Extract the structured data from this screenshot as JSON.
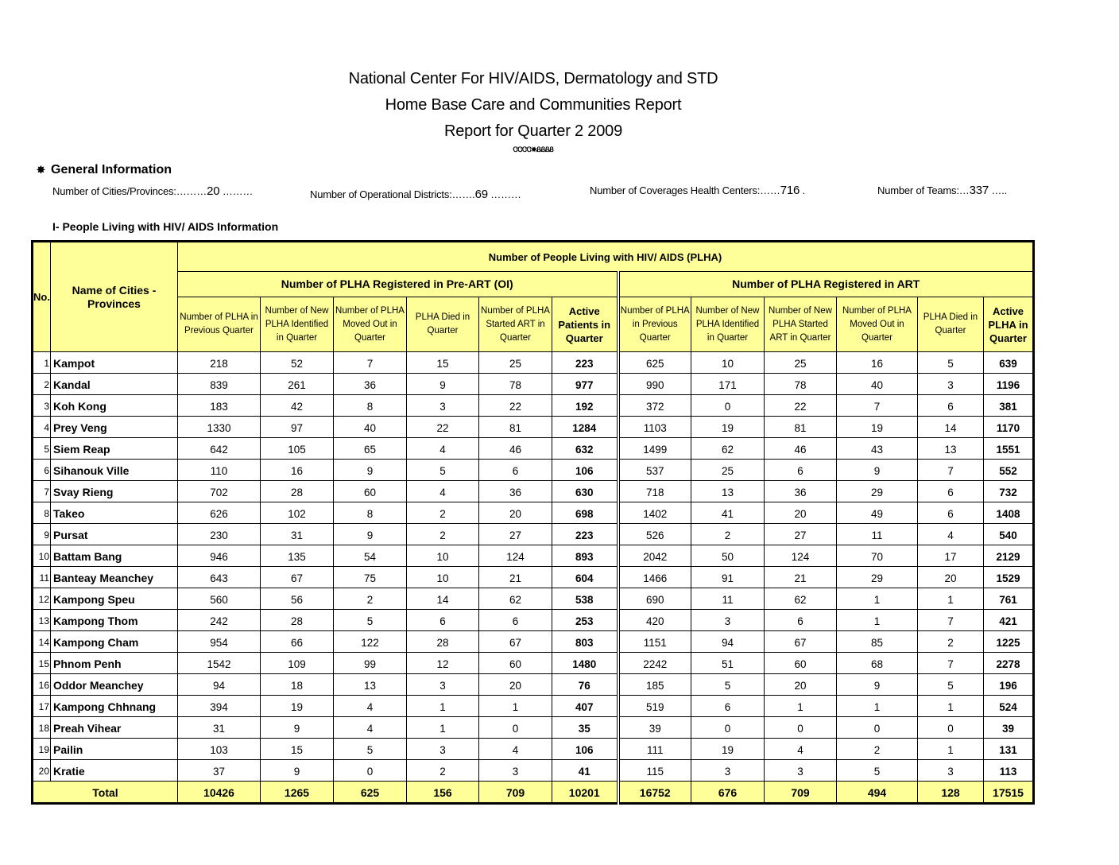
{
  "header": {
    "line1": "National Center For HIV/AIDS, Dermatology and STD",
    "line2": "Home Base Care and Communities Report",
    "line3": "Report  for Quarter 2  2009"
  },
  "general": {
    "heading": "General Information",
    "cities_label": "Number of Cities/Provinces:………",
    "cities_value": "20",
    "districts_label": "Number of Operational Districts:…….",
    "districts_value": "69",
    "centers_label": "Number of Coverages Health Centers:……",
    "centers_value": "716",
    "teams_label": "Number of Teams:…",
    "teams_value": "337"
  },
  "section_title": "I- People Living with HIV/ AIDS Information",
  "table": {
    "col_no": "No.",
    "col_name": "Name of Cities - Provinces",
    "group_main": "Number of People Living with HIV/ AIDS (PLHA)",
    "group_preart": "Number of PLHA Registered in Pre-ART (OI)",
    "group_art": "Number of PLHA Registered in ART",
    "preart_cols": [
      "Number of PLHA in Previous Quarter",
      "Number of New PLHA Identified in Quarter",
      "Number of PLHA Moved Out in Quarter",
      "PLHA Died in Quarter",
      "Number of PLHA Started ART in Quarter",
      "Active Patients in Quarter"
    ],
    "art_cols": [
      "Number of PLHA in Previous Quarter",
      "Number of New PLHA Identified in Quarter",
      "Number of New PLHA Started ART in Quarter",
      "Number of PLHA Moved Out in Quarter",
      "PLHA Died in Quarter",
      "Active PLHA in Quarter"
    ],
    "rows": [
      {
        "no": "1",
        "name": "Kampot",
        "v": [
          "218",
          "52",
          "7",
          "15",
          "25",
          "223",
          "625",
          "10",
          "25",
          "16",
          "5",
          "639"
        ]
      },
      {
        "no": "2",
        "name": "Kandal",
        "v": [
          "839",
          "261",
          "36",
          "9",
          "78",
          "977",
          "990",
          "171",
          "78",
          "40",
          "3",
          "1196"
        ]
      },
      {
        "no": "3",
        "name": "Koh Kong",
        "v": [
          "183",
          "42",
          "8",
          "3",
          "22",
          "192",
          "372",
          "0",
          "22",
          "7",
          "6",
          "381"
        ]
      },
      {
        "no": "4",
        "name": "Prey Veng",
        "v": [
          "1330",
          "97",
          "40",
          "22",
          "81",
          "1284",
          "1103",
          "19",
          "81",
          "19",
          "14",
          "1170"
        ]
      },
      {
        "no": "5",
        "name": "Siem Reap",
        "v": [
          "642",
          "105",
          "65",
          "4",
          "46",
          "632",
          "1499",
          "62",
          "46",
          "43",
          "13",
          "1551"
        ]
      },
      {
        "no": "6",
        "name": "Sihanouk Ville",
        "v": [
          "110",
          "16",
          "9",
          "5",
          "6",
          "106",
          "537",
          "25",
          "6",
          "9",
          "7",
          "552"
        ]
      },
      {
        "no": "7",
        "name": "Svay Rieng",
        "v": [
          "702",
          "28",
          "60",
          "4",
          "36",
          "630",
          "718",
          "13",
          "36",
          "29",
          "6",
          "732"
        ]
      },
      {
        "no": "8",
        "name": "Takeo",
        "v": [
          "626",
          "102",
          "8",
          "2",
          "20",
          "698",
          "1402",
          "41",
          "20",
          "49",
          "6",
          "1408"
        ]
      },
      {
        "no": "9",
        "name": "Pursat",
        "v": [
          "230",
          "31",
          "9",
          "2",
          "27",
          "223",
          "526",
          "2",
          "27",
          "11",
          "4",
          "540"
        ]
      },
      {
        "no": "10",
        "name": "Battam Bang",
        "v": [
          "946",
          "135",
          "54",
          "10",
          "124",
          "893",
          "2042",
          "50",
          "124",
          "70",
          "17",
          "2129"
        ]
      },
      {
        "no": "11",
        "name": "Banteay Meanchey",
        "v": [
          "643",
          "67",
          "75",
          "10",
          "21",
          "604",
          "1466",
          "91",
          "21",
          "29",
          "20",
          "1529"
        ]
      },
      {
        "no": "12",
        "name": "Kampong Speu",
        "v": [
          "560",
          "56",
          "2",
          "14",
          "62",
          "538",
          "690",
          "11",
          "62",
          "1",
          "1",
          "761"
        ]
      },
      {
        "no": "13",
        "name": "Kampong Thom",
        "v": [
          "242",
          "28",
          "5",
          "6",
          "6",
          "253",
          "420",
          "3",
          "6",
          "1",
          "7",
          "421"
        ]
      },
      {
        "no": "14",
        "name": "Kampong Cham",
        "v": [
          "954",
          "66",
          "122",
          "28",
          "67",
          "803",
          "1151",
          "94",
          "67",
          "85",
          "2",
          "1225"
        ]
      },
      {
        "no": "15",
        "name": "Phnom Penh",
        "v": [
          "1542",
          "109",
          "99",
          "12",
          "60",
          "1480",
          "2242",
          "51",
          "60",
          "68",
          "7",
          "2278"
        ]
      },
      {
        "no": "16",
        "name": "Oddor Meanchey",
        "v": [
          "94",
          "18",
          "13",
          "3",
          "20",
          "76",
          "185",
          "5",
          "20",
          "9",
          "5",
          "196"
        ]
      },
      {
        "no": "17",
        "name": "Kampong Chhnang",
        "v": [
          "394",
          "19",
          "4",
          "1",
          "1",
          "407",
          "519",
          "6",
          "1",
          "1",
          "1",
          "524"
        ]
      },
      {
        "no": "18",
        "name": "Preah Vihear",
        "v": [
          "31",
          "9",
          "4",
          "1",
          "0",
          "35",
          "39",
          "0",
          "0",
          "0",
          "0",
          "39"
        ]
      },
      {
        "no": "19",
        "name": "Pailin",
        "v": [
          "103",
          "15",
          "5",
          "3",
          "4",
          "106",
          "111",
          "19",
          "4",
          "2",
          "1",
          "131"
        ]
      },
      {
        "no": "20",
        "name": "Kratie",
        "v": [
          "37",
          "9",
          "0",
          "2",
          "3",
          "41",
          "115",
          "3",
          "3",
          "5",
          "3",
          "113"
        ]
      }
    ],
    "total_label": "Total",
    "totals": [
      "10426",
      "1265",
      "625",
      "156",
      "709",
      "10201",
      "16752",
      "676",
      "709",
      "494",
      "128",
      "17515"
    ]
  },
  "colors": {
    "header_fill": "#ffff99",
    "border": "#000000"
  }
}
